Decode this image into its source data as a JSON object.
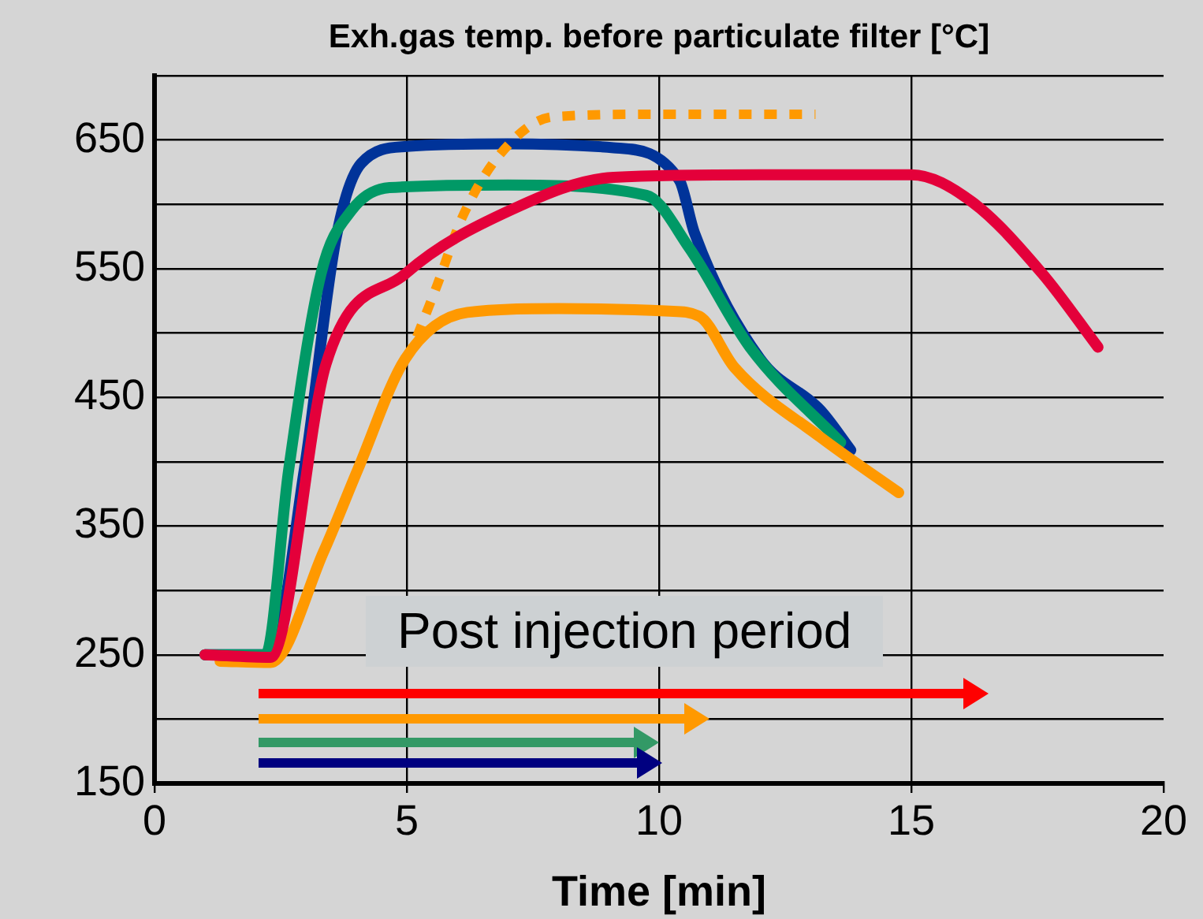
{
  "chart_data": {
    "type": "line",
    "title": "Exh.gas temp. before particulate filter [°C]",
    "xlabel": "Time [min]",
    "xlim": [
      0,
      20
    ],
    "xticks": [
      0,
      5,
      10,
      15,
      20
    ],
    "ylim": [
      150,
      700
    ],
    "yticks": [
      150,
      {
        "value": 200,
        "label": null
      },
      250,
      {
        "value": 300,
        "label": null
      },
      350,
      {
        "value": 400,
        "label": null
      },
      450,
      {
        "value": 500,
        "label": null
      },
      550,
      {
        "value": 600,
        "label": null
      },
      650,
      {
        "value": 700,
        "label": null
      }
    ],
    "grid": true,
    "legend": false,
    "marker": "none",
    "annotations": [
      "Post injection period"
    ],
    "series": [
      {
        "color": "#e4003a",
        "line_style": "solid",
        "x": [
          1,
          2.3,
          3.4,
          4.97,
          7.03,
          9.1,
          12,
          15,
          16.2,
          17.6,
          18.7
        ],
        "values": [
          250,
          248,
          476,
          546,
          595,
          621,
          623,
          623,
          602,
          546,
          489
        ]
      },
      {
        "color": "#ff9900",
        "line_style": "solid",
        "x": [
          1.3,
          2.3,
          3.35,
          4.03,
          4.97,
          6.2,
          8,
          10.2,
          10.8,
          11.5,
          13.2,
          14.75
        ],
        "values": [
          245,
          244,
          330,
          394,
          480,
          516,
          519,
          517,
          513,
          473,
          419,
          376
        ]
      },
      {
        "color": "#ff9900",
        "line_style": "dotted",
        "x": [
          5.2,
          5.6,
          6.1,
          6.85,
          7.9,
          10,
          13.1
        ],
        "values": [
          497,
          537,
          590,
          639,
          668,
          670,
          670
        ]
      },
      {
        "color": "#009966",
        "line_style": "solid",
        "x": [
          1,
          2.2,
          2.66,
          3.3,
          3.9,
          4.66,
          7,
          9.75,
          10.6,
          11.8,
          13.6
        ],
        "values": [
          250,
          250,
          394,
          546,
          595,
          613,
          615,
          607,
          566,
          489,
          415
        ]
      },
      {
        "color": "#003399",
        "line_style": "solid",
        "x": [
          1,
          2.3,
          2.97,
          3.6,
          4.1,
          5,
          7,
          9.1,
          10.4,
          10.7,
          12,
          13.2,
          13.8
        ],
        "values": [
          250,
          250,
          394,
          574,
          632,
          645,
          647,
          644,
          619,
          578,
          480,
          440,
          409
        ]
      }
    ]
  }
}
